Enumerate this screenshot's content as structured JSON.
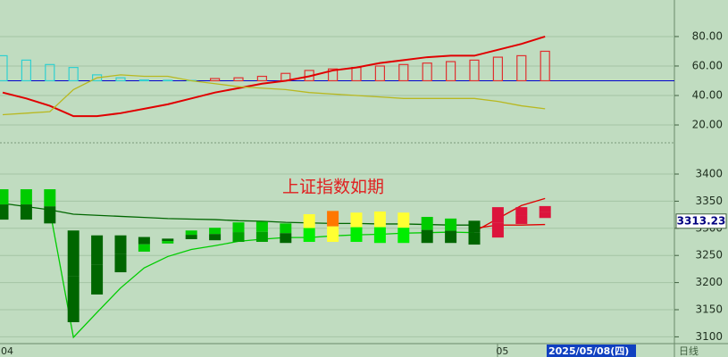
{
  "chart_data": [
    {
      "type": "indicator",
      "ylim": [
        7.9,
        104.8
      ],
      "yticks": [
        {
          "value": 20,
          "label": "20.00"
        },
        {
          "value": 40,
          "label": "40.00"
        },
        {
          "value": 60,
          "label": "60.00"
        },
        {
          "value": 80,
          "label": "80.00"
        }
      ],
      "grid": true,
      "baseline": 50,
      "baseline_color": "#0000cc",
      "bars": [
        67,
        64,
        61,
        59,
        54,
        52,
        50.5,
        50.3,
        50.2,
        51.5,
        52,
        53,
        55,
        57,
        58,
        59,
        60,
        61,
        62,
        63,
        64,
        66,
        67,
        70
      ],
      "bar_colors": [
        "#30d0d0",
        "#30d0d0",
        "#30d0d0",
        "#30d0d0",
        "#30d0d0",
        "#30d0d0",
        "#30d0d0",
        "#30d0d0",
        "#30d0d0",
        "#e03030",
        "#e03030",
        "#e03030",
        "#e03030",
        "#e03030",
        "#e03030",
        "#e03030",
        "#e03030",
        "#e03030",
        "#e03030",
        "#e03030",
        "#e03030",
        "#e03030",
        "#e03030",
        "#e03030"
      ],
      "series": [
        {
          "color": "#e00000",
          "values": [
            42,
            38,
            33,
            26,
            26,
            28,
            31,
            34,
            38,
            42,
            45,
            48,
            50,
            53,
            57,
            59,
            62,
            64,
            66,
            67,
            67,
            71,
            75,
            80
          ]
        },
        {
          "color": "#b8b820",
          "values": [
            27,
            28,
            29,
            44,
            52,
            54,
            53,
            53,
            50,
            48,
            46,
            45,
            44,
            42,
            41,
            40,
            39,
            38,
            38,
            38,
            38,
            36,
            33,
            31
          ]
        }
      ]
    },
    {
      "type": "candle-bands",
      "annotation": "上证指数如期",
      "ylim": [
        3087.5,
        3457.6
      ],
      "yticks": [
        3100,
        3150,
        3200,
        3250,
        3300,
        3350,
        3400
      ],
      "grid": true,
      "categories": [
        "04",
        null,
        null,
        null,
        null,
        null,
        null,
        null,
        null,
        null,
        null,
        null,
        null,
        null,
        null,
        null,
        null,
        null,
        null,
        null,
        null,
        "05",
        null,
        null
      ],
      "cursor_date": "2025/05/08(四)",
      "period": "日线",
      "last_value": 3313.23,
      "top": [
        3372,
        3372,
        3372,
        3296,
        3287,
        3287,
        3284,
        3281,
        3296,
        3301,
        3311,
        3312,
        3309,
        3326,
        3332,
        3329,
        3331,
        3329,
        3321,
        3318,
        3314,
        3339,
        3339,
        3341
      ],
      "bottom": [
        3316,
        3316,
        3309,
        3127,
        3178,
        3219,
        3257,
        3272,
        3280,
        3278,
        3275,
        3275,
        3273,
        3275,
        3275,
        3275,
        3273,
        3273,
        3273,
        3273,
        3270,
        3283,
        3308,
        3319
      ],
      "upper_colors": [
        "#00cc00",
        "#00cc00",
        "#00cc00",
        "#006600",
        "#006600",
        "#006600",
        "#006600",
        "#006600",
        "#00cc00",
        "#00cc00",
        "#00cc00",
        "#00cc00",
        "#00cc00",
        "#ffff33",
        "#ff7700",
        "#ffff33",
        "#ffff33",
        "#ffff33",
        "#00cc00",
        "#00cc00",
        "#006600",
        "#dc143c",
        "#dc143c",
        "#dc143c"
      ],
      "lower_colors": [
        "#006600",
        "#006600",
        "#006600",
        "#006600",
        "#006600",
        "#006600",
        "#00cc00",
        "#00cc00",
        "#006600",
        "#006600",
        "#00a000",
        "#00a000",
        "#006600",
        "#00ee00",
        "#ffff33",
        "#00ee00",
        "#00ee00",
        "#00ee00",
        "#006600",
        "#006600",
        "#006600",
        "#dc143c",
        "#dc143c",
        "#dc143c"
      ],
      "series": [
        {
          "color": "#006600",
          "values": [
            3346,
            3340,
            3334,
            3326,
            3324,
            3322,
            3320,
            3318,
            3317,
            3316,
            3314,
            3313,
            3311,
            3310,
            3309,
            3309,
            3308,
            3308,
            3307,
            3306,
            3306,
            null,
            null,
            null
          ]
        },
        {
          "color": "#00cc00",
          "values": [
            null,
            null,
            3334,
            3099,
            3145,
            3190,
            3227,
            3248,
            3261,
            3268,
            3276,
            3280,
            3283,
            3283,
            3286,
            3288,
            3289,
            3291,
            3292,
            3293,
            3292,
            null,
            null,
            null
          ]
        },
        {
          "color": "#e00000",
          "values": [
            null,
            null,
            null,
            null,
            null,
            null,
            null,
            null,
            null,
            null,
            null,
            null,
            null,
            null,
            null,
            null,
            null,
            null,
            null,
            null,
            3294,
            3318,
            3342,
            3355
          ]
        },
        {
          "color": "#e00000",
          "values": [
            null,
            null,
            null,
            null,
            null,
            null,
            null,
            null,
            null,
            null,
            null,
            null,
            null,
            null,
            null,
            null,
            null,
            null,
            null,
            null,
            3300,
            3306,
            3306,
            3307
          ]
        }
      ]
    }
  ]
}
